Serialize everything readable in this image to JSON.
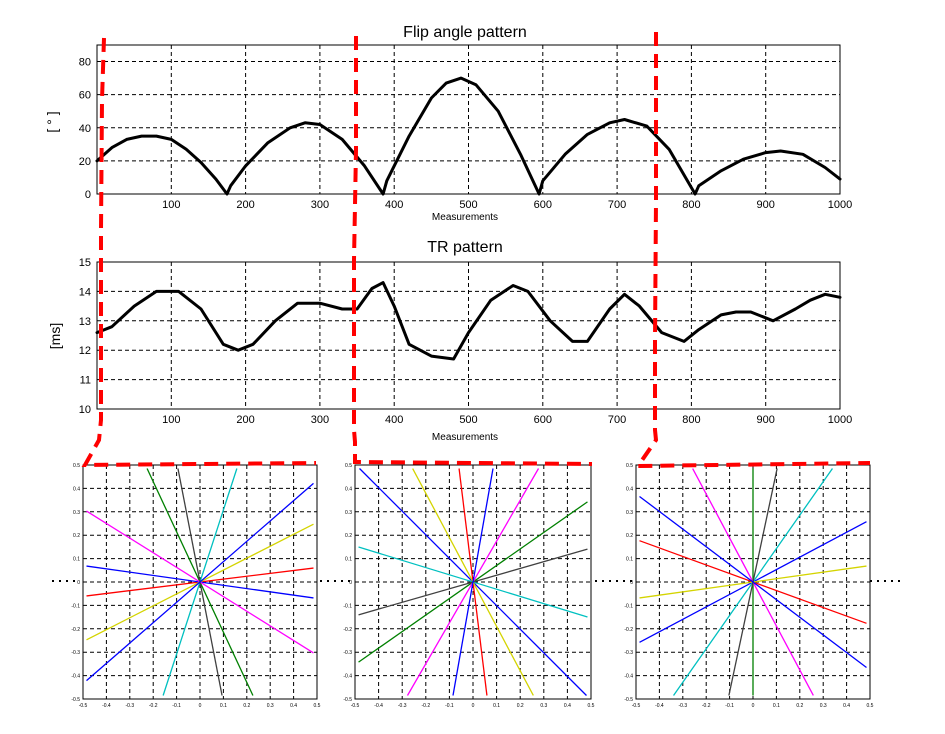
{
  "chart_data": [
    {
      "type": "line",
      "title": "Flip angle pattern",
      "xlabel": "Measurements",
      "ylabel": "[ ° ]",
      "xlim": [
        0,
        1000
      ],
      "ylim": [
        0,
        90
      ],
      "xticks": [
        100,
        200,
        300,
        400,
        500,
        600,
        700,
        800,
        900,
        1000
      ],
      "yticks": [
        0,
        20,
        40,
        60,
        80
      ],
      "grid": true,
      "series": [
        {
          "x": [
            0,
            20,
            40,
            60,
            80,
            100,
            120,
            140,
            160,
            175,
            180,
            200,
            230,
            260,
            280,
            300,
            330,
            360,
            385,
            390,
            420,
            450,
            470,
            490,
            510,
            540,
            570,
            595,
            600,
            630,
            660,
            690,
            710,
            740,
            770,
            805,
            810,
            840,
            870,
            900,
            920,
            950,
            980,
            1000
          ],
          "y": [
            20,
            28,
            33,
            35,
            35,
            33,
            27,
            19,
            9,
            0,
            5,
            17,
            31,
            40,
            43,
            42,
            33,
            17,
            0,
            8,
            35,
            58,
            67,
            70,
            66,
            50,
            24,
            0,
            8,
            24,
            36,
            43,
            45,
            41,
            27,
            0,
            5,
            14,
            21,
            25,
            26,
            24,
            16,
            9
          ]
        }
      ]
    },
    {
      "type": "line",
      "title": "TR pattern",
      "xlabel": "Measurements",
      "ylabel": "[ms]",
      "xlim": [
        0,
        1000
      ],
      "ylim": [
        10,
        15
      ],
      "xticks": [
        100,
        200,
        300,
        400,
        500,
        600,
        700,
        800,
        900,
        1000
      ],
      "yticks": [
        10,
        11,
        12,
        13,
        14,
        15
      ],
      "grid": true,
      "series": [
        {
          "x": [
            0,
            20,
            50,
            80,
            110,
            140,
            170,
            190,
            210,
            240,
            270,
            300,
            330,
            350,
            370,
            385,
            400,
            420,
            450,
            480,
            500,
            530,
            560,
            580,
            610,
            640,
            660,
            690,
            710,
            730,
            760,
            790,
            810,
            840,
            860,
            880,
            910,
            940,
            960,
            980,
            1000
          ],
          "y": [
            12.6,
            12.8,
            13.5,
            14.0,
            14.0,
            13.4,
            12.2,
            12.0,
            12.2,
            13.0,
            13.6,
            13.6,
            13.4,
            13.4,
            14.1,
            14.3,
            13.5,
            12.2,
            11.8,
            11.7,
            12.6,
            13.7,
            14.2,
            14.0,
            13.0,
            12.3,
            12.3,
            13.4,
            13.9,
            13.5,
            12.6,
            12.3,
            12.7,
            13.2,
            13.3,
            13.3,
            13.0,
            13.4,
            13.7,
            13.9,
            13.8
          ]
        }
      ]
    },
    {
      "type": "line",
      "title": "",
      "xlabel": "",
      "ylabel": "",
      "xlim": [
        -0.5,
        0.5
      ],
      "ylim": [
        -0.5,
        0.5
      ],
      "xticks": [
        "-0.5",
        "-0.4",
        "-0.3",
        "-0.2",
        "-0.1",
        "0",
        "0.1",
        "0.2",
        "0.3",
        "0.4",
        "0.5"
      ],
      "yticks": [
        "-0.5",
        "-0.4",
        "-0.3",
        "-0.2",
        "-0.1",
        "0",
        "0.1",
        "0.2",
        "0.3",
        "0.4",
        "0.5"
      ],
      "grid": true,
      "spoke_colors": [
        "#ff0000",
        "#0000ff",
        "#d4d400",
        "#00c0c0",
        "#008000",
        "#ff00ff",
        "#404040",
        "#0000ff"
      ],
      "spoke_angles_deg": [
        7,
        172,
        27,
        72,
        115,
        148,
        101,
        41
      ]
    },
    {
      "type": "line",
      "title": "",
      "xlabel": "",
      "ylabel": "",
      "xlim": [
        -0.5,
        0.5
      ],
      "ylim": [
        -0.5,
        0.5
      ],
      "xticks": [
        "-0.5",
        "-0.4",
        "-0.3",
        "-0.2",
        "-0.1",
        "0",
        "0.1",
        "0.2",
        "0.3",
        "0.4",
        "0.5"
      ],
      "yticks": [
        "-0.5",
        "-0.4",
        "-0.3",
        "-0.2",
        "-0.1",
        "0",
        "0.1",
        "0.2",
        "0.3",
        "0.4",
        "0.5"
      ],
      "grid": true,
      "spoke_colors": [
        "#ff0000",
        "#0000ff",
        "#d4d400",
        "#00c0c0",
        "#008000",
        "#ff00ff",
        "#404040",
        "#0000ff"
      ],
      "spoke_angles_deg": [
        97,
        135,
        118,
        163,
        35,
        60,
        16,
        80
      ]
    },
    {
      "type": "line",
      "title": "",
      "xlabel": "",
      "ylabel": "",
      "xlim": [
        -0.5,
        0.5
      ],
      "ylim": [
        -0.5,
        0.5
      ],
      "xticks": [
        "-0.5",
        "-0.4",
        "-0.3",
        "-0.2",
        "-0.1",
        "0",
        "0.1",
        "0.2",
        "0.3",
        "0.4",
        "0.5"
      ],
      "yticks": [
        "-0.5",
        "-0.4",
        "-0.3",
        "-0.2",
        "-0.1",
        "0",
        "0.1",
        "0.2",
        "0.3",
        "0.4",
        "0.5"
      ],
      "grid": true,
      "spoke_colors": [
        "#ff0000",
        "#0000ff",
        "#d4d400",
        "#00c0c0",
        "#008000",
        "#ff00ff",
        "#404040",
        "#0000ff"
      ],
      "spoke_angles_deg": [
        160,
        28,
        8,
        55,
        90,
        118,
        78,
        143
      ]
    }
  ]
}
